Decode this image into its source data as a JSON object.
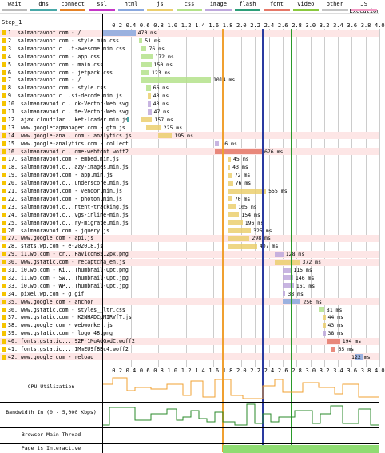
{
  "legend": [
    {
      "label": "wait",
      "color": "#ffffff"
    },
    {
      "label": "dns",
      "color": "#48a8a8"
    },
    {
      "label": "connect",
      "color": "#e58226"
    },
    {
      "label": "ssl",
      "color": "#c436c7"
    },
    {
      "label": "html",
      "color": "#8aa8de"
    },
    {
      "label": "js",
      "color": "#ebcf6f"
    },
    {
      "label": "css",
      "color": "#b4e28a"
    },
    {
      "label": "image",
      "color": "#bea8dc"
    },
    {
      "label": "flash",
      "color": "#2d9e78"
    },
    {
      "label": "font",
      "color": "#e57868"
    },
    {
      "label": "video",
      "color": "#8ac83e"
    },
    {
      "label": "other",
      "color": "#c4c4c4"
    },
    {
      "label": "JS Execution",
      "color": "#f19bc4"
    }
  ],
  "step_label": "Step_1",
  "ticks": [
    "0.2",
    "0.4",
    "0.6",
    "0.8",
    "1.0",
    "1.2",
    "1.4",
    "1.6",
    "1.8",
    "2.0",
    "2.2",
    "2.4",
    "2.6",
    "2.8",
    "3.0",
    "3.2",
    "3.4",
    "3.6",
    "3.8",
    "4.0"
  ],
  "rows": [
    {
      "label": "1. salmanravoof.com - /",
      "dur": "470 ms",
      "start": 0.0,
      "len": 0.47,
      "type": "html",
      "shade": true
    },
    {
      "label": "2. salmanravoof.com - style.min.css",
      "dur": "51 ms",
      "start": 0.52,
      "len": 0.05,
      "type": "css"
    },
    {
      "label": "3. salmanravoof.c...t-awesome.min.css",
      "dur": "76 ms",
      "start": 0.55,
      "len": 0.08,
      "type": "css"
    },
    {
      "label": "4. salmanravoof.com - app.css",
      "dur": "172 ms",
      "start": 0.55,
      "len": 0.17,
      "type": "css"
    },
    {
      "label": "5. salmanravoof.com - main.css",
      "dur": "150 ms",
      "start": 0.55,
      "len": 0.15,
      "type": "css"
    },
    {
      "label": "6. salmanravoof.com - jetpack.css",
      "dur": "123 ms",
      "start": 0.55,
      "len": 0.12,
      "type": "css"
    },
    {
      "label": "7. salmanravoof.com - /",
      "dur": "1014 ms",
      "start": 0.55,
      "len": 1.01,
      "type": "css"
    },
    {
      "label": "8. salmanravoof.com - style.css",
      "dur": "66 ms",
      "start": 0.62,
      "len": 0.07,
      "type": "css"
    },
    {
      "label": "9. salmanravoof.c...si-decode.min.js",
      "dur": "43 ms",
      "start": 0.65,
      "len": 0.04,
      "type": "js"
    },
    {
      "label": "10. salmanravoof.c...ck-Vector-Web.svg",
      "dur": "43 ms",
      "start": 0.65,
      "len": 0.04,
      "type": "image"
    },
    {
      "label": "11. salmanravoof.c...te-Vector-Web.svg",
      "dur": "47 ms",
      "start": 0.65,
      "len": 0.05,
      "type": "image"
    },
    {
      "label": "12. ajax.cloudflar...ket-loader.min.js",
      "dur": "157 ms",
      "start": 0.55,
      "len": 0.16,
      "type": "js",
      "pre": 0.2
    },
    {
      "label": "13. www.googletagmanager.com - gtm.js",
      "dur": "225 ms",
      "start": 0.62,
      "len": 0.22,
      "type": "js"
    },
    {
      "label": "14. www.google-ana...com - analytics.js",
      "dur": "195 ms",
      "start": 0.8,
      "len": 0.2,
      "type": "js",
      "shade": true
    },
    {
      "label": "15. www.google-analytics.com - collect",
      "dur": "56 ms",
      "start": 1.62,
      "len": 0.06,
      "type": "image"
    },
    {
      "label": "16. salmanravoof.c...ome-webfont.woff2",
      "dur": "676 ms",
      "start": 1.62,
      "len": 0.68,
      "type": "font",
      "shade": true
    },
    {
      "label": "17. salmanravoof.com - embed.min.js",
      "dur": "45 ms",
      "start": 1.8,
      "len": 0.05,
      "type": "js"
    },
    {
      "label": "18. salmanravoof.c...azy-images.min.js",
      "dur": "43 ms",
      "start": 1.8,
      "len": 0.04,
      "type": "js"
    },
    {
      "label": "19. salmanravoof.com - app.min.js",
      "dur": "72 ms",
      "start": 1.8,
      "len": 0.07,
      "type": "js"
    },
    {
      "label": "20. salmanravoof.c...underscore.min.js",
      "dur": "76 ms",
      "start": 1.8,
      "len": 0.08,
      "type": "js"
    },
    {
      "label": "21. salmanravoof.com - vendor.min.js",
      "dur": "555 ms",
      "start": 1.8,
      "len": 0.56,
      "type": "js"
    },
    {
      "label": "22. salmanravoof.com - photon.min.js",
      "dur": "70 ms",
      "start": 1.8,
      "len": 0.07,
      "type": "js"
    },
    {
      "label": "23. salmanravoof.c...ntent-tracking.js",
      "dur": "105 ms",
      "start": 1.82,
      "len": 0.1,
      "type": "js"
    },
    {
      "label": "24. salmanravoof.c...vgs-inline-min.js",
      "dur": "154 ms",
      "start": 1.82,
      "len": 0.15,
      "type": "js"
    },
    {
      "label": "25. salmanravoof.c...ry-migrate.min.js",
      "dur": "196 ms",
      "start": 1.82,
      "len": 0.2,
      "type": "js"
    },
    {
      "label": "26. salmanravoof.com - jquery.js",
      "dur": "325 ms",
      "start": 1.82,
      "len": 0.32,
      "type": "js"
    },
    {
      "label": "27. www.google.com - api.js",
      "dur": "298 ms",
      "start": 1.82,
      "len": 0.3,
      "type": "js",
      "shade": true
    },
    {
      "label": "28. stats.wp.com - e-202018.js",
      "dur": "407 ms",
      "start": 1.82,
      "len": 0.41,
      "type": "js"
    },
    {
      "label": "29. i1.wp.com - cr...Favicon8512px.png",
      "dur": "128 ms",
      "start": 2.48,
      "len": 0.13,
      "type": "image",
      "shade": true
    },
    {
      "label": "30. www.gstatic.com - recaptcha_en.js",
      "dur": "372 ms",
      "start": 2.48,
      "len": 0.37,
      "type": "js",
      "shade": true
    },
    {
      "label": "31. i0.wp.com - Ki...Thumbnail-Opt.png",
      "dur": "115 ms",
      "start": 2.6,
      "len": 0.12,
      "type": "image"
    },
    {
      "label": "32. i1.wp.com - Sw...Thumbnail-Opt.jpg",
      "dur": "146 ms",
      "start": 2.6,
      "len": 0.15,
      "type": "image"
    },
    {
      "label": "33. i0.wp.com - WP...Thumbnail-Opt.jpg",
      "dur": "161 ms",
      "start": 2.6,
      "len": 0.16,
      "type": "image"
    },
    {
      "label": "34. pixel.wp.com - g.gif",
      "dur": "38 ms",
      "start": 2.6,
      "len": 0.04,
      "type": "image"
    },
    {
      "label": "35. www.google.com - anchor",
      "dur": "256 ms",
      "start": 2.6,
      "len": 0.26,
      "type": "html",
      "shade": true
    },
    {
      "label": "36. www.gstatic.com - styles__ltr.css",
      "dur": "81 ms",
      "start": 3.12,
      "len": 0.08,
      "type": "css"
    },
    {
      "label": "37. www.gstatic.com - K2NHADCpMIRVfT.js",
      "dur": "44 ms",
      "start": 3.18,
      "len": 0.04,
      "type": "js"
    },
    {
      "label": "38. www.google.com - webworker.js",
      "dur": "43 ms",
      "start": 3.18,
      "len": 0.04,
      "type": "js"
    },
    {
      "label": "39. www.gstatic.com - logo_48.png",
      "dur": "38 ms",
      "start": 3.18,
      "len": 0.04,
      "type": "image"
    },
    {
      "label": "40. fonts.gstatic....92Fr1MuAdGxdC.woff2",
      "dur": "194 ms",
      "start": 3.24,
      "len": 0.19,
      "type": "font",
      "shade": true
    },
    {
      "label": "41. fonts.gstatic....1MmEU9fBBc4.woff2",
      "dur": "65 ms",
      "start": 3.3,
      "len": 0.07,
      "type": "font"
    },
    {
      "label": "42. www.google.com - reload",
      "dur": "122 ms",
      "start": 3.65,
      "len": 0.12,
      "type": "html",
      "shade": true
    }
  ],
  "panels": {
    "cpu": "CPU Utilization",
    "bandwidth": "Bandwidth In (0 - 5,000 Kbps)",
    "main_thread": "Browser Main Thread",
    "interactive": "Page is Interactive"
  }
}
